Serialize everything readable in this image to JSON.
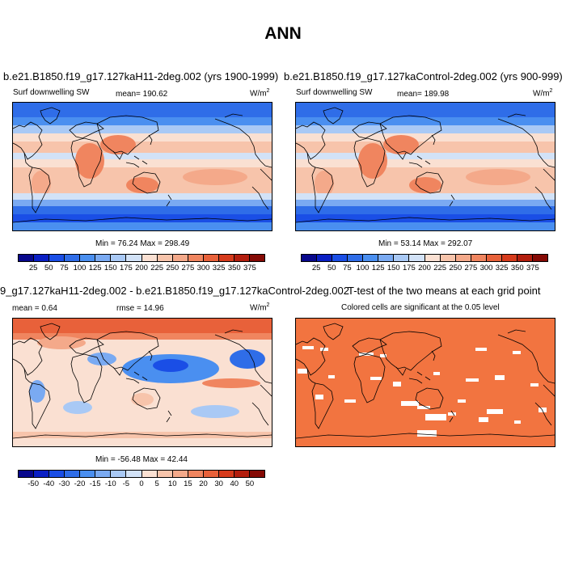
{
  "title": "ANN",
  "panels": {
    "p1": {
      "title": "b.e21.B1850.f19_g17.127kaH11-2deg.002 (yrs 1900-1999)",
      "left": "Surf downwelling SW",
      "center": "mean= 190.62",
      "units": "W/m",
      "minmax": "Min =  76.24 Max = 298.49"
    },
    "p2": {
      "title": "b.e21.B1850.f19_g17.127kaControl-2deg.002 (yrs 900-999)",
      "left": "Surf downwelling SW",
      "center": "mean= 189.98",
      "units": "W/m",
      "minmax": "Min =  53.14 Max = 292.07"
    },
    "p3": {
      "title": "9_g17.127kaH11-2deg.002 - b.e21.B1850.f19_g17.127kaControl-2deg.002",
      "left": "mean =   0.64",
      "center": "rmse =  14.96",
      "units": "W/m",
      "minmax": "Min = -56.48 Max =  42.44"
    },
    "p4": {
      "title": "T-test of the two means at each grid point",
      "subtitle": "Colored cells are significant at the 0.05 level"
    }
  },
  "unit_superscript": "2",
  "colorbar_abs": {
    "labels": [
      "25",
      "50",
      "75",
      "100",
      "125",
      "150",
      "175",
      "200",
      "225",
      "250",
      "275",
      "300",
      "325",
      "350",
      "375"
    ],
    "colors": [
      "#08088c",
      "#0a1fc4",
      "#1a4ee6",
      "#2f6de8",
      "#4a8ff0",
      "#7aaaf2",
      "#a9c9f5",
      "#d2e2f7",
      "#fae0d2",
      "#f7c4ab",
      "#f4a98a",
      "#f0855f",
      "#e8613a",
      "#d63b1c",
      "#b31e0e",
      "#850a05"
    ]
  },
  "colorbar_diff": {
    "labels": [
      "-50",
      "-40",
      "-30",
      "-20",
      "-15",
      "-10",
      "-5",
      "0",
      "5",
      "10",
      "15",
      "20",
      "30",
      "40",
      "50"
    ],
    "colors": [
      "#08088c",
      "#0a1fc4",
      "#1a4ee6",
      "#2f6de8",
      "#4a8ff0",
      "#7aaaf2",
      "#a9c9f5",
      "#d2e2f7",
      "#fae0d2",
      "#f7c4ab",
      "#f4a98a",
      "#f0855f",
      "#e8613a",
      "#d63b1c",
      "#b31e0e",
      "#850a05"
    ]
  },
  "ttest_color": "#f27440"
}
